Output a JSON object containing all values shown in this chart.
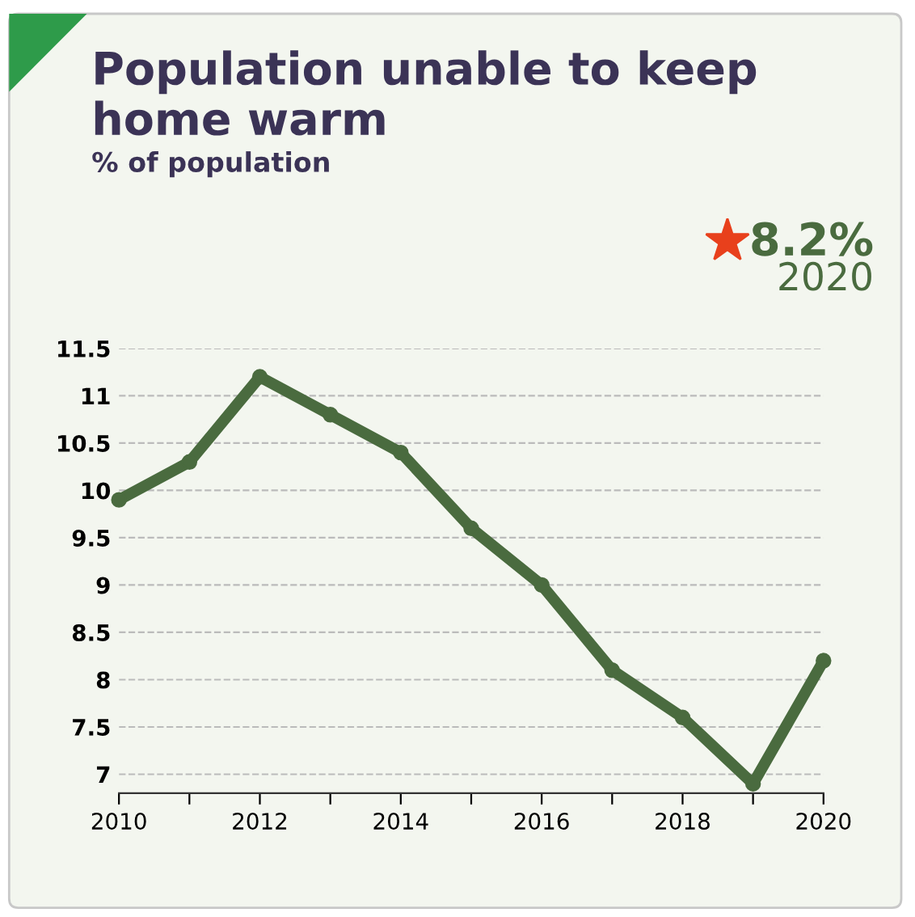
{
  "chart_data": {
    "type": "line",
    "title": "Population unable to keep home warm",
    "subtitle": "% of population",
    "annotations": [
      "8.2%",
      "2020"
    ],
    "x": [
      2010,
      2011,
      2012,
      2013,
      2014,
      2015,
      2016,
      2017,
      2018,
      2019,
      2020
    ],
    "series": [
      {
        "color": "#4a6b3f",
        "values": [
          9.9,
          10.3,
          11.2,
          10.8,
          10.4,
          9.6,
          9.0,
          8.1,
          7.6,
          6.9,
          8.2
        ]
      }
    ],
    "xlim": [
      2010,
      2020
    ],
    "xticks": [
      2010,
      {
        "value": 2011,
        "label": null
      },
      2012,
      {
        "value": 2013,
        "label": null
      },
      2014,
      {
        "value": 2015,
        "label": null
      },
      2016,
      {
        "value": 2017,
        "label": null
      },
      2018,
      {
        "value": 2019,
        "label": null
      },
      2020
    ],
    "ylim": [
      6.8,
      11.5
    ],
    "yticks": [
      7,
      7.5,
      8,
      8.5,
      9,
      9.5,
      10,
      10.5,
      11,
      11.5
    ],
    "grid": "y",
    "marker": "circle",
    "line_style": "solid"
  }
}
